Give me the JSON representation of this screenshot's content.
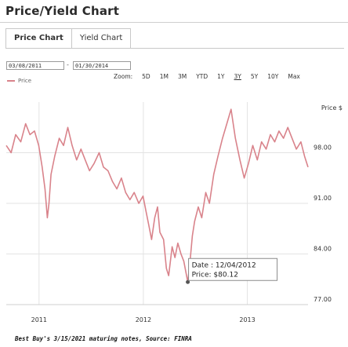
{
  "header": {
    "title": "Price/Yield Chart"
  },
  "tabs": [
    {
      "label": "Price Chart",
      "active": true
    },
    {
      "label": "Yield Chart",
      "active": false
    }
  ],
  "range": {
    "from": "03/08/2011",
    "separator": "-",
    "to": "01/30/2014"
  },
  "zoom": {
    "label": "Zoom:",
    "options": [
      "5D",
      "1M",
      "3M",
      "YTD",
      "1Y",
      "3Y",
      "5Y",
      "10Y",
      "Max"
    ],
    "active": "3Y"
  },
  "legend": {
    "label": "Price",
    "color": "#d9838b"
  },
  "tooltip": {
    "date_line": "Date : 12/04/2012",
    "price_line": "Price: $80.12"
  },
  "footnote": "Best Buy's 3/15/2021 maturing notes, Source: FINRA",
  "chart_data": {
    "type": "line",
    "title": "",
    "xlabel": "",
    "ylabel": "Price $",
    "xlim": [
      "2011-03-08",
      "2014-01-30"
    ],
    "ylim": [
      77,
      105
    ],
    "y_ticks": [
      77,
      84,
      91,
      98
    ],
    "y_tick_labels": [
      "77.00",
      "84.00",
      "91.00",
      "98.00"
    ],
    "x_tick_labels": [
      "2011",
      "2012",
      "2013"
    ],
    "x_ticks": [
      "2011-07-01",
      "2012-07-01",
      "2013-07-01"
    ],
    "grid": true,
    "series": [
      {
        "name": "Price",
        "color": "#d9838b",
        "points": [
          [
            "2011-03-08",
            99.0
          ],
          [
            "2011-03-25",
            98.0
          ],
          [
            "2011-04-10",
            100.5
          ],
          [
            "2011-04-28",
            99.5
          ],
          [
            "2011-05-15",
            102.0
          ],
          [
            "2011-05-30",
            100.5
          ],
          [
            "2011-06-15",
            101.0
          ],
          [
            "2011-06-30",
            99.0
          ],
          [
            "2011-07-12",
            96.0
          ],
          [
            "2011-07-22",
            93.0
          ],
          [
            "2011-07-30",
            89.0
          ],
          [
            "2011-08-05",
            91.0
          ],
          [
            "2011-08-12",
            95.0
          ],
          [
            "2011-08-25",
            97.5
          ],
          [
            "2011-09-10",
            100.0
          ],
          [
            "2011-09-25",
            99.0
          ],
          [
            "2011-10-10",
            101.5
          ],
          [
            "2011-10-25",
            99.0
          ],
          [
            "2011-11-10",
            97.0
          ],
          [
            "2011-11-25",
            98.5
          ],
          [
            "2011-12-10",
            97.0
          ],
          [
            "2011-12-25",
            95.5
          ],
          [
            "2012-01-10",
            96.5
          ],
          [
            "2012-01-28",
            98.0
          ],
          [
            "2012-02-12",
            96.0
          ],
          [
            "2012-02-28",
            95.5
          ],
          [
            "2012-03-15",
            94.0
          ],
          [
            "2012-03-30",
            93.0
          ],
          [
            "2012-04-15",
            94.5
          ],
          [
            "2012-04-30",
            92.5
          ],
          [
            "2012-05-15",
            91.5
          ],
          [
            "2012-05-30",
            92.5
          ],
          [
            "2012-06-15",
            91.0
          ],
          [
            "2012-06-30",
            92.0
          ],
          [
            "2012-07-10",
            90.0
          ],
          [
            "2012-07-20",
            88.0
          ],
          [
            "2012-07-30",
            86.0
          ],
          [
            "2012-08-10",
            89.0
          ],
          [
            "2012-08-20",
            90.5
          ],
          [
            "2012-08-28",
            87.0
          ],
          [
            "2012-09-10",
            86.0
          ],
          [
            "2012-09-20",
            82.0
          ],
          [
            "2012-09-28",
            81.0
          ],
          [
            "2012-10-10",
            85.0
          ],
          [
            "2012-10-20",
            83.5
          ],
          [
            "2012-10-30",
            85.5
          ],
          [
            "2012-11-10",
            84.0
          ],
          [
            "2012-11-20",
            83.0
          ],
          [
            "2012-12-04",
            80.12
          ],
          [
            "2012-12-12",
            83.0
          ],
          [
            "2012-12-20",
            86.5
          ],
          [
            "2012-12-28",
            88.5
          ],
          [
            "2013-01-10",
            90.5
          ],
          [
            "2013-01-22",
            89.0
          ],
          [
            "2013-02-05",
            92.5
          ],
          [
            "2013-02-18",
            91.0
          ],
          [
            "2013-03-05",
            95.0
          ],
          [
            "2013-03-20",
            97.5
          ],
          [
            "2013-04-05",
            100.0
          ],
          [
            "2013-04-20",
            102.0
          ],
          [
            "2013-05-05",
            104.0
          ],
          [
            "2013-05-20",
            100.0
          ],
          [
            "2013-06-05",
            97.0
          ],
          [
            "2013-06-20",
            94.5
          ],
          [
            "2013-07-05",
            96.5
          ],
          [
            "2013-07-20",
            99.0
          ],
          [
            "2013-08-05",
            97.0
          ],
          [
            "2013-08-20",
            99.5
          ],
          [
            "2013-09-05",
            98.5
          ],
          [
            "2013-09-20",
            100.5
          ],
          [
            "2013-10-05",
            99.5
          ],
          [
            "2013-10-20",
            101.0
          ],
          [
            "2013-11-05",
            100.0
          ],
          [
            "2013-11-20",
            101.5
          ],
          [
            "2013-12-05",
            100.0
          ],
          [
            "2013-12-20",
            98.5
          ],
          [
            "2014-01-05",
            99.5
          ],
          [
            "2014-01-18",
            97.5
          ],
          [
            "2014-01-30",
            96.0
          ]
        ]
      }
    ],
    "highlight": {
      "date": "2012-12-04",
      "value": 80.12
    }
  }
}
